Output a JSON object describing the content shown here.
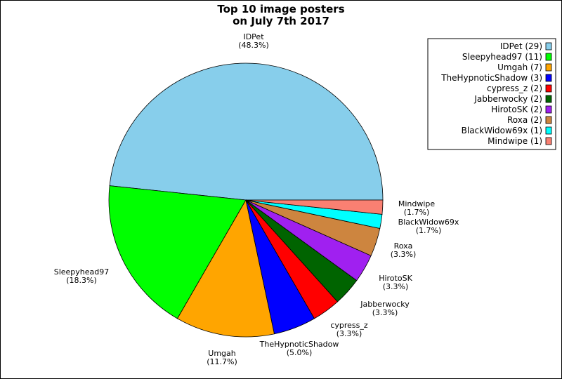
{
  "chart_data": {
    "type": "pie",
    "title_lines": [
      "Top 10 image posters",
      "on July 7th 2017"
    ],
    "slices": [
      {
        "name": "IDPet",
        "value": 29,
        "pct_label": "(48.3%)",
        "legend_label": "IDPet (29)",
        "color": "#87ceeb"
      },
      {
        "name": "Sleepyhead97",
        "value": 11,
        "pct_label": "(18.3%)",
        "legend_label": "Sleepyhead97 (11)",
        "color": "#00ff00"
      },
      {
        "name": "Umgah",
        "value": 7,
        "pct_label": "(11.7%)",
        "legend_label": "Umgah (7)",
        "color": "#ffa500"
      },
      {
        "name": "TheHypnoticShadow",
        "value": 3,
        "pct_label": "(5.0%)",
        "legend_label": "TheHypnoticShadow (3)",
        "color": "#0000ff"
      },
      {
        "name": "cypress_z",
        "value": 2,
        "pct_label": "(3.3%)",
        "legend_label": "cypress_z (2)",
        "color": "#ff0000"
      },
      {
        "name": "Jabberwocky",
        "value": 2,
        "pct_label": "(3.3%)",
        "legend_label": "Jabberwocky (2)",
        "color": "#006400"
      },
      {
        "name": "HirotoSK",
        "value": 2,
        "pct_label": "(3.3%)",
        "legend_label": "HirotoSK (2)",
        "color": "#a020f0"
      },
      {
        "name": "Roxa",
        "value": 2,
        "pct_label": "(3.3%)",
        "legend_label": "Roxa (2)",
        "color": "#cd853f"
      },
      {
        "name": "BlackWidow69x",
        "value": 1,
        "pct_label": "(1.7%)",
        "legend_label": "BlackWidow69x (1)",
        "color": "#00ffff"
      },
      {
        "name": "Mindwipe",
        "value": 1,
        "pct_label": "(1.7%)",
        "legend_label": "Mindwipe (1)",
        "color": "#fa8072"
      }
    ],
    "start_angle": "0 degrees (3 o'clock), counter-clockwise",
    "legend_position": "top-right"
  }
}
